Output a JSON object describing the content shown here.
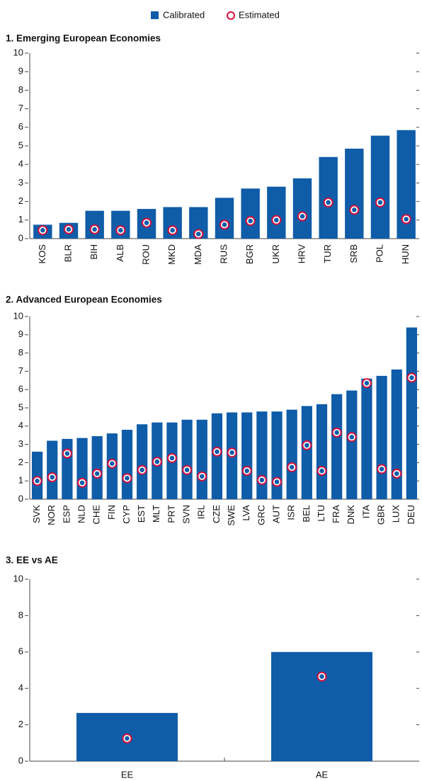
{
  "chart_data": [
    {
      "type": "bar",
      "title": "1. Emerging European Economies",
      "categories": [
        "KOS",
        "BLR",
        "BIH",
        "ALB",
        "ROU",
        "MKD",
        "MDA",
        "RUS",
        "BGR",
        "UKR",
        "HRV",
        "TUR",
        "SRB",
        "POL",
        "HUN"
      ],
      "series": [
        {
          "name": "Calibrated",
          "color": "#0f5ca8",
          "values": [
            0.75,
            0.85,
            1.5,
            1.5,
            1.6,
            1.7,
            1.7,
            2.2,
            2.7,
            2.8,
            3.25,
            4.4,
            4.85,
            5.55,
            5.85
          ]
        },
        {
          "name": "Estimated",
          "color": "#d4103c",
          "values": [
            0.45,
            0.5,
            0.5,
            0.45,
            0.85,
            0.45,
            0.25,
            0.75,
            0.95,
            1.0,
            1.2,
            1.95,
            1.55,
            1.95,
            1.05
          ]
        }
      ],
      "ylim": [
        0,
        10
      ],
      "yticks": [
        0,
        1,
        2,
        3,
        4,
        5,
        6,
        7,
        8,
        9,
        10
      ]
    },
    {
      "type": "bar",
      "title": "2. Advanced European Economies",
      "categories": [
        "SVK",
        "NOR",
        "ESP",
        "NLD",
        "CHE",
        "FIN",
        "CYP",
        "EST",
        "MLT",
        "PRT",
        "SVN",
        "IRL",
        "CZE",
        "SWE",
        "LVA",
        "GRC",
        "AUT",
        "ISR",
        "BEL",
        "LTU",
        "FRA",
        "DNK",
        "ITA",
        "GBR",
        "LUX",
        "DEU"
      ],
      "series": [
        {
          "name": "Calibrated",
          "color": "#0f5ca8",
          "values": [
            2.6,
            3.2,
            3.3,
            3.35,
            3.45,
            3.6,
            3.8,
            4.1,
            4.2,
            4.2,
            4.35,
            4.35,
            4.7,
            4.75,
            4.75,
            4.8,
            4.8,
            4.9,
            5.1,
            5.2,
            5.75,
            5.95,
            6.6,
            6.75,
            7.1,
            9.4
          ]
        },
        {
          "name": "Estimated",
          "color": "#d4103c",
          "values": [
            1.0,
            1.2,
            2.5,
            0.9,
            1.4,
            1.95,
            1.15,
            1.6,
            2.05,
            2.25,
            1.6,
            1.25,
            2.6,
            2.55,
            1.55,
            1.05,
            0.95,
            1.75,
            2.95,
            1.55,
            3.65,
            3.4,
            6.35,
            1.65,
            1.4,
            6.65
          ]
        }
      ],
      "ylim": [
        0,
        10
      ],
      "yticks": [
        0,
        1,
        2,
        3,
        4,
        5,
        6,
        7,
        8,
        9,
        10
      ]
    },
    {
      "type": "bar",
      "title": "3. EE vs AE",
      "categories": [
        "EE",
        "AE"
      ],
      "series": [
        {
          "name": "Calibrated",
          "color": "#0f5ca8",
          "values": [
            2.65,
            6.0
          ]
        },
        {
          "name": "Estimated",
          "color": "#d4103c",
          "values": [
            1.25,
            4.65
          ]
        }
      ],
      "ylim": [
        0,
        10
      ],
      "yticks": [
        0,
        2,
        4,
        6,
        8,
        10
      ]
    }
  ]
}
